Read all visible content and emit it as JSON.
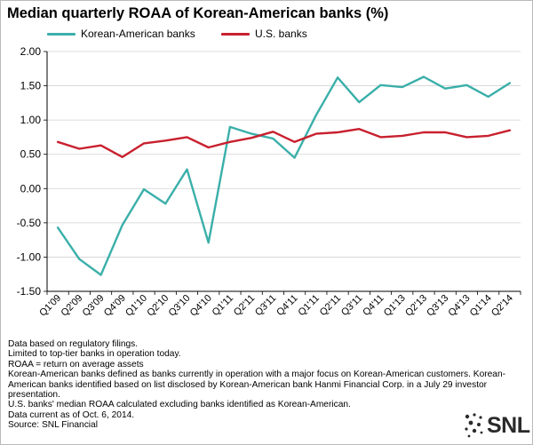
{
  "chart_data": {
    "type": "line",
    "title": "Median quarterly ROAA of Korean-American banks (%)",
    "categories": [
      "Q1'09",
      "Q2'09",
      "Q3'09",
      "Q4'09",
      "Q1'10",
      "Q2'10",
      "Q3'10",
      "Q4'10",
      "Q1'11",
      "Q2'11",
      "Q3'11",
      "Q4'11",
      "Q1'11",
      "Q2'11",
      "Q3'11",
      "Q4'11",
      "Q1'13",
      "Q2'13",
      "Q3'13",
      "Q4'13",
      "Q1'14",
      "Q2'14"
    ],
    "y_ticks": [
      "2.00",
      "1.50",
      "1.00",
      "0.50",
      "0.00",
      "-0.50",
      "-1.00",
      "-1.50"
    ],
    "ylim": [
      -1.5,
      2.0
    ],
    "grid": true,
    "legend_position": "top-left",
    "series": [
      {
        "name": "Korean-American banks",
        "color": "#3aafa9",
        "values": [
          -0.57,
          -1.03,
          -1.26,
          -0.53,
          -0.01,
          -0.22,
          0.28,
          -0.79,
          0.9,
          0.8,
          0.73,
          0.45,
          1.07,
          1.62,
          1.26,
          1.51,
          1.48,
          1.63,
          1.46,
          1.51,
          1.34,
          1.54
        ]
      },
      {
        "name": "U.S. banks",
        "color": "#c8202e",
        "values": [
          0.68,
          0.58,
          0.63,
          0.46,
          0.66,
          0.7,
          0.75,
          0.6,
          0.68,
          0.74,
          0.83,
          0.68,
          0.8,
          0.82,
          0.87,
          0.75,
          0.77,
          0.82,
          0.82,
          0.75,
          0.77,
          0.85
        ]
      }
    ]
  },
  "footnotes": [
    "Data based on regulatory filings.",
    "Limited to top-tier banks in operation today.",
    "ROAA = return on average assets",
    "Korean-American banks defined as banks currently in operation with a major focus on Korean-American customers.  Korean-American banks identified based on list disclosed by Korean-American bank Hanmi Financial Corp. in a July 29 investor presentation.",
    "U.S. banks' median ROAA calculated excluding banks identified as Korean-American.",
    "Data current as of Oct. 6, 2014.",
    "Source: SNL Financial"
  ],
  "logo": {
    "text": "SNL",
    "icon": "snl-dots-icon"
  }
}
